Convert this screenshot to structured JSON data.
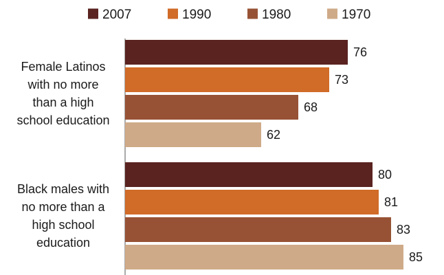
{
  "chart_data": {
    "type": "bar",
    "orientation": "horizontal",
    "title": "",
    "xlabel": "",
    "ylabel": "",
    "categories": [
      "Female Latinos with no more than a high school education",
      "Black males with no more than a high school education"
    ],
    "category_lines": [
      [
        "Female Latinos",
        "with no more",
        "than a high",
        "school education"
      ],
      [
        "Black males with",
        "no more than a",
        "high school",
        "education"
      ]
    ],
    "series": [
      {
        "name": "2007",
        "color": "#5a2320",
        "values": [
          76,
          80
        ]
      },
      {
        "name": "1990",
        "color": "#d06b28",
        "values": [
          73,
          81
        ]
      },
      {
        "name": "1980",
        "color": "#975235",
        "values": [
          68,
          83
        ]
      },
      {
        "name": "1970",
        "color": "#cfaa88",
        "values": [
          62,
          85
        ]
      }
    ],
    "xlim": [
      40,
      86
    ],
    "grid": false,
    "legend_position": "top"
  }
}
